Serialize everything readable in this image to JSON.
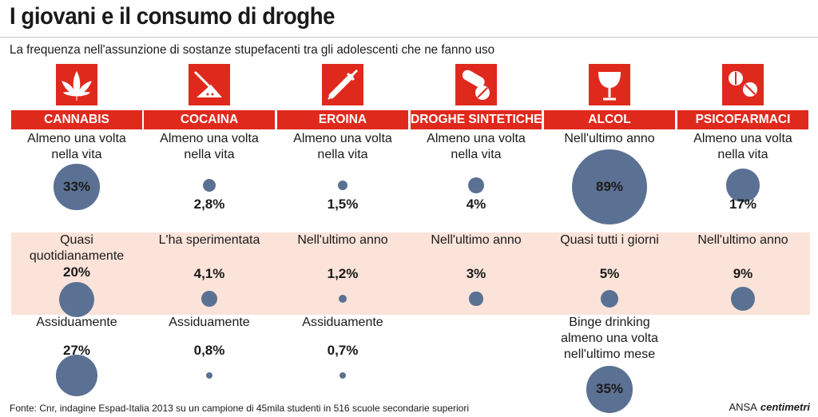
{
  "title": "I giovani e il consumo di droghe",
  "subtitle": "La frequenza nell'assunzione di sostanze stupefacenti tra gli adolescenti che ne fanno uso",
  "footer": "Fonte: Cnr, indagine Espad-Italia 2013 su un campione di 45mila studenti in 516 scuole secondarie superiori",
  "brand": {
    "ansa": "ANSA",
    "centimetri": "centimetri"
  },
  "colors": {
    "accent": "#e0291d",
    "bubble": "#5b7193",
    "band": "#fbe3d9"
  },
  "chart_data": {
    "type": "bubble",
    "title": "I giovani e il consumo di droghe",
    "unit": "%",
    "categories": [
      {
        "name": "CANNABIS",
        "icon": "cannabis-leaf-icon",
        "rows": [
          {
            "label": "Almeno una volta\nnella vita",
            "value": 33,
            "display": "33%"
          },
          {
            "label": "Quasi\nquotidianamente",
            "value": 20,
            "display": "20%"
          },
          {
            "label": "Assiduamente",
            "value": 27,
            "display": "27%"
          }
        ]
      },
      {
        "name": "COCAINA",
        "icon": "powder-line-icon",
        "rows": [
          {
            "label": "Almeno una volta\nnella vita",
            "value": 2.8,
            "display": "2,8%"
          },
          {
            "label": "L'ha sperimentata",
            "value": 4.1,
            "display": "4,1%"
          },
          {
            "label": "Assiduamente",
            "value": 0.8,
            "display": "0,8%"
          }
        ]
      },
      {
        "name": "EROINA",
        "icon": "syringe-icon",
        "rows": [
          {
            "label": "Almeno una volta\nnella vita",
            "value": 1.5,
            "display": "1,5%"
          },
          {
            "label": "Nell'ultimo anno",
            "value": 1.2,
            "display": "1,2%"
          },
          {
            "label": "Assiduamente",
            "value": 0.7,
            "display": "0,7%"
          }
        ]
      },
      {
        "name": "DROGHE SINTETICHE",
        "icon": "pills-icon",
        "rows": [
          {
            "label": "Almeno una volta\nnella vita",
            "value": 4,
            "display": "4%"
          },
          {
            "label": "Nell'ultimo anno",
            "value": 3,
            "display": "3%"
          }
        ]
      },
      {
        "name": "ALCOL",
        "icon": "wine-glass-icon",
        "rows": [
          {
            "label": "Nell'ultimo anno",
            "value": 89,
            "display": "89%"
          },
          {
            "label": "Quasi tutti i giorni",
            "value": 5,
            "display": "5%"
          },
          {
            "label": "Binge drinking\nalmeno una volta\nnell'ultimo mese",
            "value": 35,
            "display": "35%"
          }
        ]
      },
      {
        "name": "PSICOFARMACI",
        "icon": "tablets-icon",
        "rows": [
          {
            "label": "Almeno una volta\nnella vita",
            "value": 17,
            "display": "17%"
          },
          {
            "label": "Nell'ultimo anno",
            "value": 9,
            "display": "9%"
          }
        ]
      }
    ]
  }
}
